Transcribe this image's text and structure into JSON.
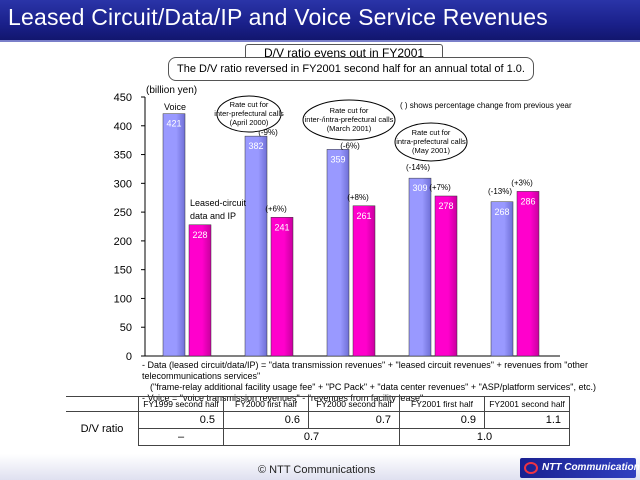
{
  "page": {
    "title": "Leased Circuit/Data/IP and Voice Service Revenues",
    "callout_top": "D/V ratio evens out in FY2001",
    "callout_sub": "The D/V ratio reversed in FY2001 second half for an annual total of 1.0.",
    "copyright": "© NTT Communications",
    "logo": "NTT Communications"
  },
  "colors": {
    "voice": "#9999ff",
    "data": "#ff00cc",
    "header": "#1a208a"
  },
  "chart_data": {
    "type": "bar",
    "ylabel": "(billion yen)",
    "ylim": [
      0,
      450
    ],
    "yticks": [
      "0",
      "50",
      "100",
      "150",
      "200",
      "250",
      "300",
      "350",
      "400",
      "450"
    ],
    "grid": false,
    "categories": [
      "FY1999 second half",
      "FY2000 first half",
      "FY2000 second half",
      "FY2001 first half",
      "FY2001 second half"
    ],
    "series": [
      {
        "name": "Voice",
        "values": [
          421,
          382,
          359,
          309,
          268
        ],
        "labels": [
          "421",
          "382",
          "359",
          "309",
          "268"
        ],
        "changes": [
          "",
          "(-9%)",
          "(-6%)",
          "(-14%)",
          "(-13%)"
        ]
      },
      {
        "name": "Leased-circuit data and IP",
        "values": [
          228,
          241,
          261,
          278,
          286
        ],
        "labels": [
          "228",
          "241",
          "261",
          "278",
          "286"
        ],
        "changes": [
          "",
          "(+6%)",
          "(+8%)",
          "(+7%)",
          "(+3%)"
        ]
      }
    ],
    "series_label_voice": "Voice",
    "series_label_data_1": "Leased-circuit",
    "series_label_data_2": "data and IP",
    "legend_note": "( ) shows percentage change from previous year",
    "annotations": {
      "a1": [
        "Rate cut for",
        "inter-prefectural calls",
        "(April 2000)"
      ],
      "a2": [
        "Rate cut for",
        "inter-/intra-prefectural calls",
        "(March 2001)"
      ],
      "a3": [
        "Rate cut for",
        "intra-prefectural calls",
        "(May 2001)"
      ]
    }
  },
  "notes": [
    "- Data (leased circuit/data/IP) = \"data transmission revenues\" + \"leased circuit revenues\" + revenues from \"other telecommunications services\"",
    "  (\"frame-relay additional facility usage fee\" + \"PC Pack\" + \"data center revenues\" + \"ASP/platform services\", etc.)",
    "- Voice = \"voice transmission revenues\" - \"revenues from facility lease\""
  ],
  "table": {
    "row_label": "D/V ratio",
    "headers": [
      "FY1999 second half",
      "FY2000 first half",
      "FY2000 second half",
      "FY2001 first half",
      "FY2001 second half"
    ],
    "half_values": [
      "0.5",
      "0.6",
      "0.7",
      "0.9",
      "1.1"
    ],
    "annual_values": [
      "–",
      "0.7",
      "1.0"
    ]
  }
}
